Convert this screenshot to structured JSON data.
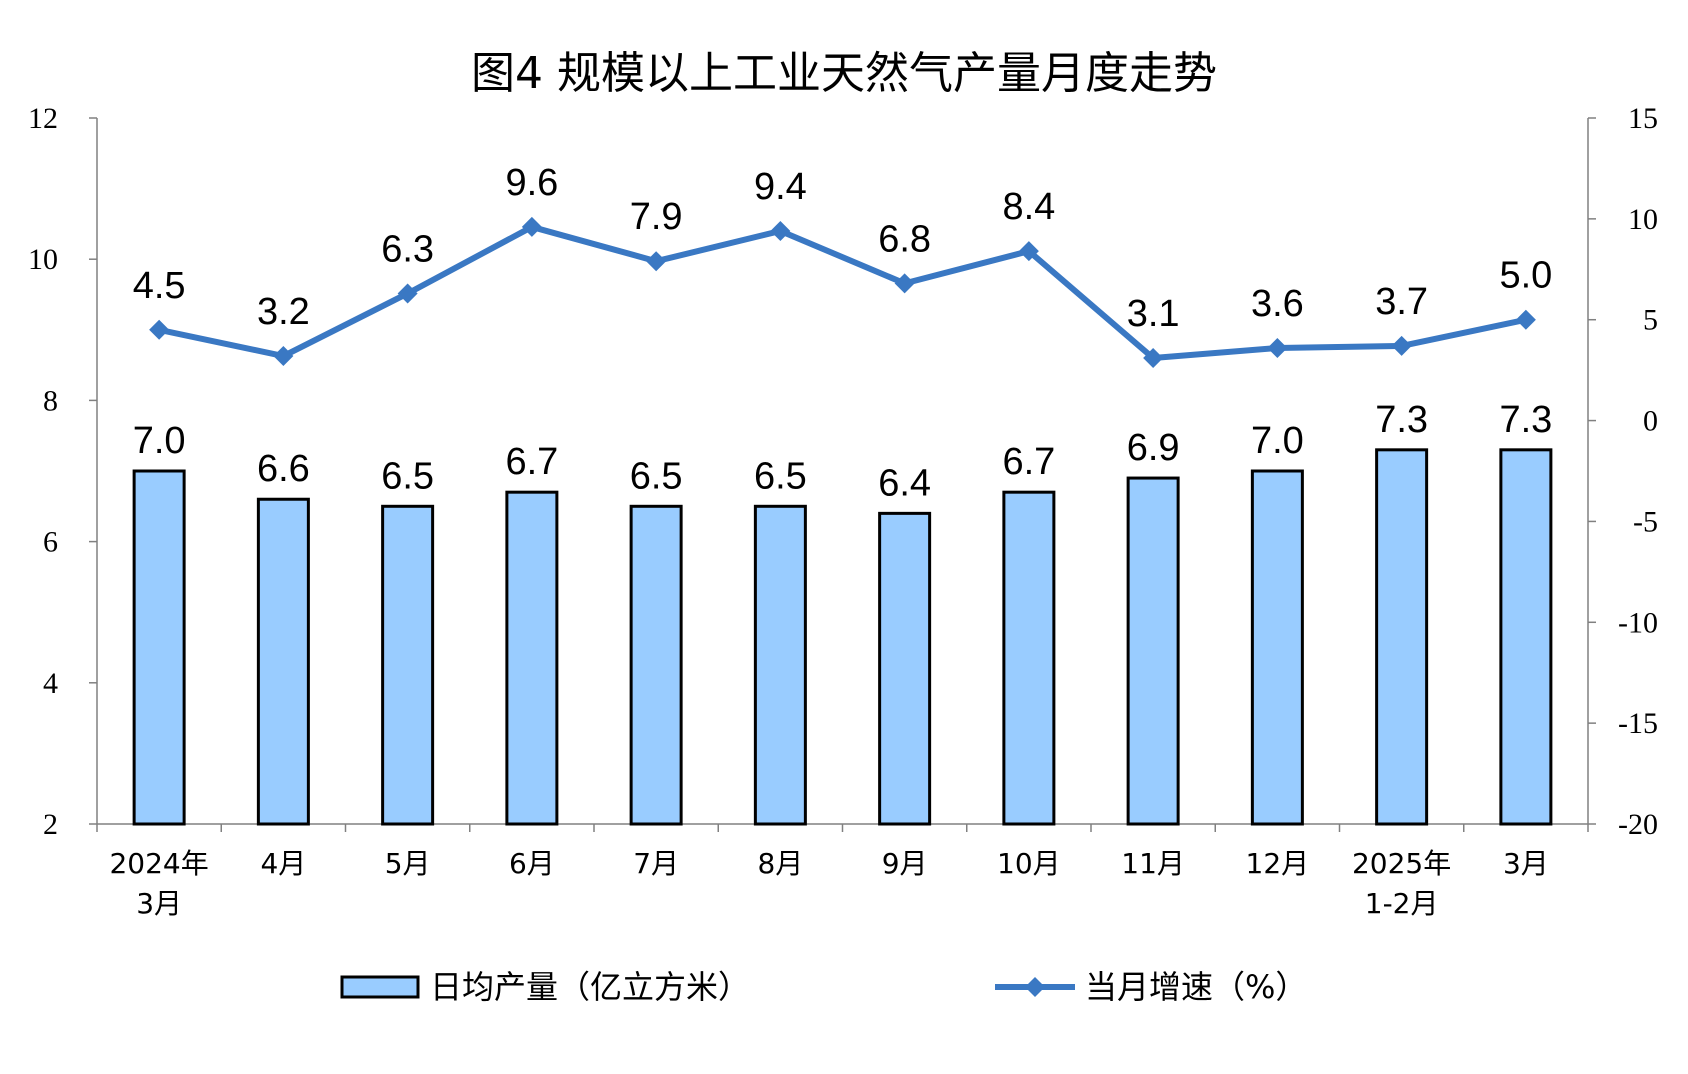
{
  "chart_data": {
    "type": "bar",
    "title": "图4  规模以上工业天然气产量月度走势",
    "categories": [
      [
        "2024年",
        "3月"
      ],
      [
        "4月"
      ],
      [
        "5月"
      ],
      [
        "6月"
      ],
      [
        "7月"
      ],
      [
        "8月"
      ],
      [
        "9月"
      ],
      [
        "10月"
      ],
      [
        "11月"
      ],
      [
        "12月"
      ],
      [
        "2025年",
        "1-2月"
      ],
      [
        "3月"
      ]
    ],
    "series": [
      {
        "name": "日均产量（亿立方米）",
        "type": "bar",
        "axis": "left",
        "color": "#99ccff",
        "values": [
          7.0,
          6.6,
          6.5,
          6.7,
          6.5,
          6.5,
          6.4,
          6.7,
          6.9,
          7.0,
          7.3,
          7.3
        ]
      },
      {
        "name": "当月增速（%）",
        "type": "line",
        "axis": "right",
        "color": "#3a78c3",
        "values": [
          4.5,
          3.2,
          6.3,
          9.6,
          7.9,
          9.4,
          6.8,
          8.4,
          3.1,
          3.6,
          3.7,
          5.0
        ]
      }
    ],
    "y_left": {
      "ylim": [
        2,
        12
      ],
      "ticks": [
        "2",
        "4",
        "6",
        "8",
        "10",
        "12"
      ]
    },
    "y_right": {
      "ylim": [
        -20,
        15
      ],
      "ticks": [
        "-20",
        "-15",
        "-10",
        "-5",
        "0",
        "5",
        "10",
        "15"
      ]
    },
    "grid": false,
    "legend": "bottom"
  }
}
